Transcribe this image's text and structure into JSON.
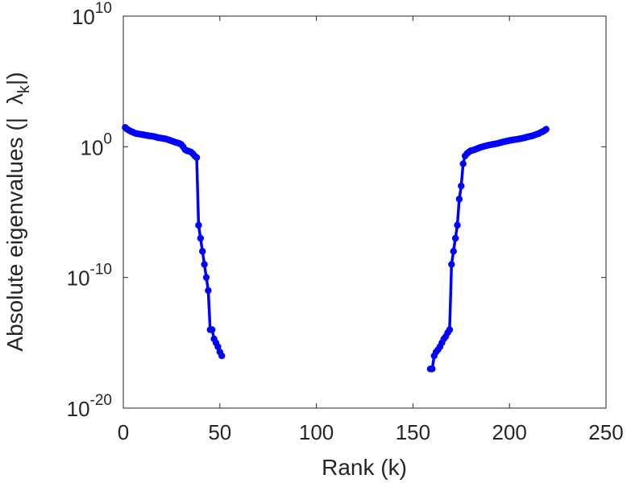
{
  "chart_data": {
    "type": "scatter",
    "title": "",
    "xlabel": "Rank (k)",
    "ylabel": {
      "main": "Absolute eigenvalues (|",
      "symbol": "λ",
      "subscript": "k",
      "suffix": "|)"
    },
    "xlim": [
      0,
      250
    ],
    "ylim": [
      1e-20,
      10000000000.0
    ],
    "yscale": "log",
    "x_ticks": [
      0,
      50,
      100,
      150,
      200,
      250
    ],
    "x_tick_labels": [
      "0",
      "50",
      "100",
      "150",
      "200",
      "250"
    ],
    "y_ticks": [
      {
        "value": 10000000000.0,
        "base": "10",
        "exp": "10"
      },
      {
        "value": 1.0,
        "base": "10",
        "exp": "0"
      },
      {
        "value": 1e-10,
        "base": "10",
        "exp": "-10"
      },
      {
        "value": 1e-20,
        "base": "10",
        "exp": "-20"
      }
    ],
    "grid": false,
    "legend": "none",
    "series": [
      {
        "color": "#0000ff",
        "marker": "circle",
        "segments": [
          {
            "x": [
              1,
              2,
              3,
              4,
              5,
              6,
              7,
              8,
              9,
              10,
              11,
              12,
              13,
              14,
              15,
              16,
              17,
              18,
              19,
              20,
              21,
              22,
              23,
              24,
              25,
              26,
              27,
              28,
              29,
              30,
              31,
              32,
              33,
              34,
              35,
              36,
              37,
              38,
              39,
              40,
              41,
              42,
              43,
              44,
              45,
              46,
              47,
              48,
              49,
              50,
              51
            ],
            "y": [
              30,
              22,
              18,
              15,
              13,
              11,
              10,
              9.5,
              9,
              8.5,
              8,
              7.5,
              7,
              6.8,
              6.5,
              6,
              5.5,
              5,
              4.8,
              4.5,
              4.2,
              4,
              3.6,
              3.2,
              2.8,
              2.5,
              2.2,
              2,
              1.8,
              1.5,
              1.0,
              0.6,
              0.5,
              0.45,
              0.4,
              0.3,
              0.2,
              0.15,
              1e-06,
              1e-07,
              1e-08,
              1e-09,
              1e-10,
              1e-11,
              1e-14,
              1e-14,
              2e-15,
              1e-15,
              5e-16,
              2e-16,
              1e-16
            ]
          },
          {
            "x": [
              159,
              160,
              161,
              162,
              163,
              164,
              165,
              166,
              167,
              168,
              169,
              170,
              171,
              172,
              173,
              174,
              175,
              176,
              177,
              178,
              179,
              180,
              181,
              182,
              183,
              184,
              185,
              186,
              187,
              188,
              189,
              190,
              191,
              192,
              193,
              194,
              195,
              196,
              197,
              198,
              199,
              200,
              201,
              202,
              203,
              204,
              205,
              206,
              207,
              208,
              209,
              210,
              211,
              212,
              213,
              214,
              215,
              216,
              217,
              218,
              219
            ],
            "y": [
              1e-17,
              1e-17,
              1e-16,
              2e-16,
              3e-16,
              5e-16,
              1e-15,
              2e-15,
              3e-15,
              6e-15,
              1e-14,
              1e-09,
              1e-08,
              1e-07,
              1e-06,
              0.0001,
              0.001,
              0.05,
              0.2,
              0.3,
              0.4,
              0.5,
              0.55,
              0.6,
              0.7,
              0.8,
              0.9,
              1.0,
              1.1,
              1.2,
              1.3,
              1.4,
              1.5,
              1.6,
              1.7,
              1.8,
              2.0,
              2.2,
              2.4,
              2.6,
              2.8,
              3.0,
              3.2,
              3.4,
              3.6,
              3.8,
              4.0,
              4.3,
              4.6,
              5.0,
              5.5,
              6.0,
              6.5,
              7.0,
              8.0,
              9.0,
              10,
              12,
              14,
              17,
              22
            ]
          }
        ]
      }
    ]
  }
}
